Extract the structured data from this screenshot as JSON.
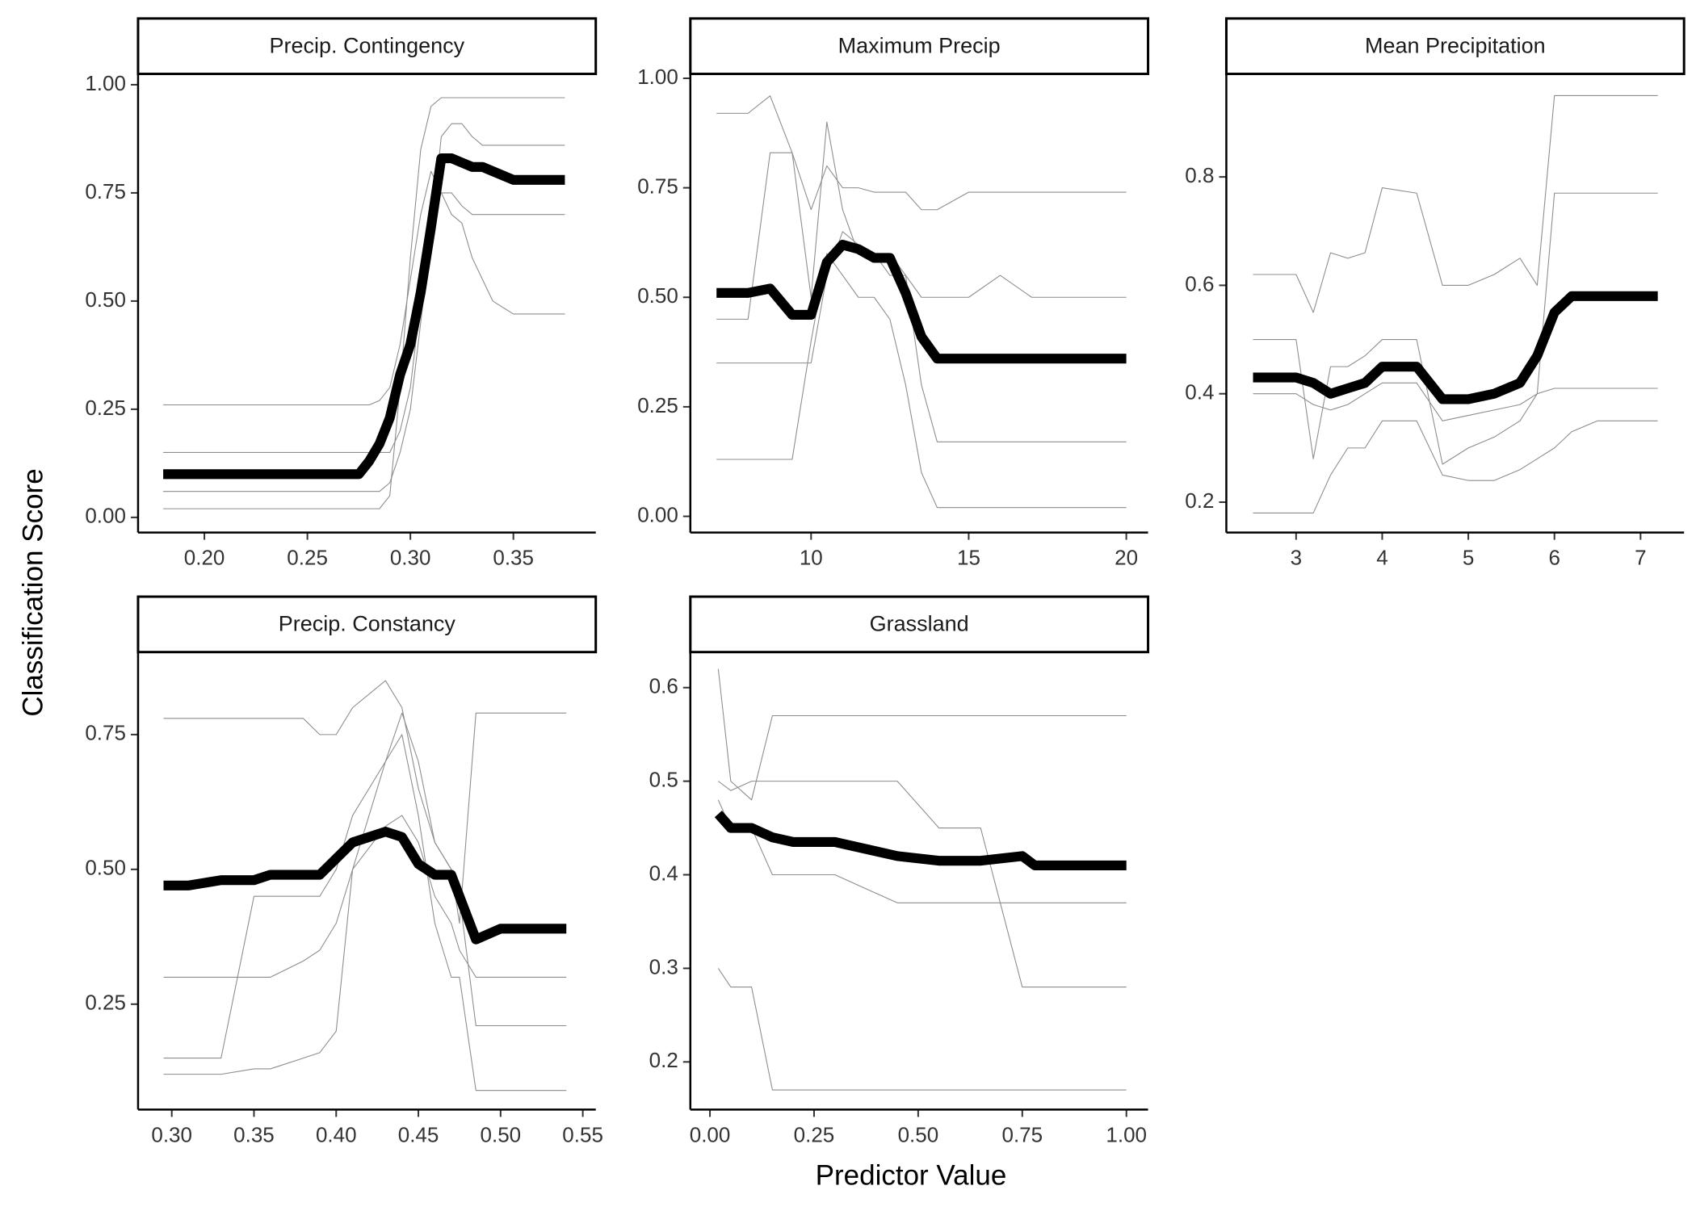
{
  "ylabel": "Classification Score",
  "xlabel": "Predictor Value",
  "chart_data": [
    {
      "type": "line",
      "title": "Precip. Contingency",
      "x": [
        0.18,
        0.2,
        0.22,
        0.24,
        0.26,
        0.275,
        0.28,
        0.285,
        0.29,
        0.295,
        0.3,
        0.305,
        0.31,
        0.315,
        0.32,
        0.325,
        0.33,
        0.335,
        0.34,
        0.35,
        0.355,
        0.375
      ],
      "xlim": [
        0.1678,
        0.39
      ],
      "xticks": [
        {
          "value": 0.2,
          "label": "0.20"
        },
        {
          "value": 0.25,
          "label": "0.25"
        },
        {
          "value": 0.3,
          "label": "0.30"
        },
        {
          "value": 0.35,
          "label": "0.35"
        }
      ],
      "ylim": [
        -0.035,
        1.025
      ],
      "yticks": [
        {
          "value": 0,
          "label": "0.00"
        },
        {
          "value": 0.25,
          "label": "0.25"
        },
        {
          "value": 0.5,
          "label": "0.50"
        },
        {
          "value": 0.75,
          "label": "0.75"
        },
        {
          "value": 1,
          "label": "1.00"
        }
      ],
      "series": [
        {
          "color": "#8c8c8c",
          "linewidth": 0.8,
          "values": [
            0.02,
            0.02,
            0.02,
            0.02,
            0.02,
            0.02,
            0.02,
            0.02,
            0.05,
            0.3,
            0.6,
            0.85,
            0.95,
            0.97,
            0.97,
            0.97,
            0.97,
            0.97,
            0.97,
            0.97,
            0.97,
            0.97
          ]
        },
        {
          "color": "#8c8c8c",
          "linewidth": 0.8,
          "values": [
            0.26,
            0.26,
            0.26,
            0.26,
            0.26,
            0.26,
            0.26,
            0.27,
            0.3,
            0.4,
            0.55,
            0.7,
            0.8,
            0.75,
            0.7,
            0.68,
            0.6,
            0.55,
            0.5,
            0.47,
            0.47,
            0.47
          ]
        },
        {
          "color": "#8c8c8c",
          "linewidth": 0.8,
          "values": [
            0.06,
            0.06,
            0.06,
            0.06,
            0.06,
            0.06,
            0.06,
            0.06,
            0.08,
            0.15,
            0.25,
            0.45,
            0.65,
            0.88,
            0.91,
            0.91,
            0.88,
            0.86,
            0.86,
            0.86,
            0.86,
            0.86
          ]
        },
        {
          "color": "#8c8c8c",
          "linewidth": 0.8,
          "values": [
            0.15,
            0.15,
            0.15,
            0.15,
            0.15,
            0.15,
            0.15,
            0.15,
            0.15,
            0.2,
            0.3,
            0.5,
            0.7,
            0.75,
            0.75,
            0.72,
            0.7,
            0.7,
            0.7,
            0.7,
            0.7,
            0.7
          ]
        },
        {
          "color": "#000000",
          "linewidth": 9,
          "values": [
            0.1,
            0.1,
            0.1,
            0.1,
            0.1,
            0.1,
            0.13,
            0.17,
            0.23,
            0.33,
            0.4,
            0.52,
            0.67,
            0.83,
            0.83,
            0.82,
            0.81,
            0.81,
            0.8,
            0.78,
            0.78,
            0.78
          ]
        }
      ]
    },
    {
      "type": "line",
      "title": "Maximum Precip",
      "x": [
        7,
        8,
        8.7,
        9.4,
        10,
        10.5,
        11,
        11.5,
        12,
        12.5,
        13,
        13.5,
        14,
        15,
        16,
        17,
        20
      ],
      "xlim": [
        6.17,
        20.69
      ],
      "xticks": [
        10,
        15,
        20
      ],
      "ylim": [
        -0.037,
        1.01
      ],
      "yticks": [
        {
          "value": 0,
          "label": "0.00"
        },
        {
          "value": 0.25,
          "label": "0.25"
        },
        {
          "value": 0.5,
          "label": "0.50"
        },
        {
          "value": 0.75,
          "label": "0.75"
        },
        {
          "value": 1,
          "label": "1.00"
        }
      ],
      "series": [
        {
          "color": "#8c8c8c",
          "linewidth": 0.8,
          "values": [
            0.92,
            0.92,
            0.96,
            0.83,
            0.7,
            0.8,
            0.75,
            0.75,
            0.74,
            0.74,
            0.74,
            0.7,
            0.7,
            0.74,
            0.74,
            0.74,
            0.74
          ]
        },
        {
          "color": "#8c8c8c",
          "linewidth": 0.8,
          "values": [
            0.13,
            0.13,
            0.13,
            0.13,
            0.4,
            0.6,
            0.55,
            0.5,
            0.5,
            0.45,
            0.3,
            0.1,
            0.02,
            0.02,
            0.02,
            0.02,
            0.02
          ]
        },
        {
          "color": "#8c8c8c",
          "linewidth": 0.8,
          "values": [
            0.35,
            0.35,
            0.35,
            0.35,
            0.35,
            0.55,
            0.65,
            0.62,
            0.6,
            0.55,
            0.55,
            0.5,
            0.5,
            0.5,
            0.55,
            0.5,
            0.5
          ]
        },
        {
          "color": "#8c8c8c",
          "linewidth": 0.8,
          "values": [
            0.45,
            0.45,
            0.83,
            0.83,
            0.5,
            0.9,
            0.7,
            0.6,
            0.6,
            0.6,
            0.55,
            0.3,
            0.17,
            0.17,
            0.17,
            0.17,
            0.17
          ]
        },
        {
          "color": "#000000",
          "linewidth": 9,
          "values": [
            0.51,
            0.51,
            0.52,
            0.46,
            0.46,
            0.58,
            0.62,
            0.61,
            0.59,
            0.59,
            0.51,
            0.41,
            0.36,
            0.36,
            0.36,
            0.36,
            0.36
          ]
        }
      ]
    },
    {
      "type": "line",
      "title": "Mean Precipitation",
      "x": [
        2.5,
        3,
        3.2,
        3.4,
        3.6,
        3.8,
        4,
        4.4,
        4.7,
        5,
        5.3,
        5.6,
        5.8,
        6,
        6.2,
        6.5,
        7.2
      ],
      "xlim": [
        2.19,
        7.505
      ],
      "xticks": [
        3,
        4,
        5,
        6,
        7
      ],
      "ylim": [
        0.144,
        0.99
      ],
      "yticks": [
        0.2,
        0.4,
        0.6,
        0.8
      ],
      "series": [
        {
          "color": "#8c8c8c",
          "linewidth": 0.8,
          "values": [
            0.62,
            0.62,
            0.55,
            0.66,
            0.65,
            0.66,
            0.78,
            0.77,
            0.6,
            0.6,
            0.62,
            0.65,
            0.6,
            0.95,
            0.95,
            0.95,
            0.95
          ]
        },
        {
          "color": "#8c8c8c",
          "linewidth": 0.8,
          "values": [
            0.18,
            0.18,
            0.18,
            0.25,
            0.3,
            0.3,
            0.35,
            0.35,
            0.25,
            0.24,
            0.24,
            0.26,
            0.28,
            0.3,
            0.33,
            0.35,
            0.35
          ]
        },
        {
          "color": "#8c8c8c",
          "linewidth": 0.8,
          "values": [
            0.5,
            0.5,
            0.28,
            0.45,
            0.45,
            0.47,
            0.5,
            0.5,
            0.27,
            0.3,
            0.32,
            0.35,
            0.4,
            0.77,
            0.77,
            0.77,
            0.77
          ]
        },
        {
          "color": "#8c8c8c",
          "linewidth": 0.8,
          "values": [
            0.4,
            0.4,
            0.38,
            0.37,
            0.38,
            0.4,
            0.42,
            0.42,
            0.35,
            0.36,
            0.37,
            0.38,
            0.4,
            0.41,
            0.41,
            0.41,
            0.41
          ]
        },
        {
          "color": "#000000",
          "linewidth": 9,
          "values": [
            0.43,
            0.43,
            0.42,
            0.4,
            0.41,
            0.42,
            0.45,
            0.45,
            0.39,
            0.39,
            0.4,
            0.42,
            0.47,
            0.55,
            0.58,
            0.58,
            0.58
          ]
        }
      ]
    },
    {
      "type": "line",
      "title": "Precip. Constancy",
      "x": [
        0.295,
        0.31,
        0.33,
        0.35,
        0.36,
        0.38,
        0.39,
        0.4,
        0.41,
        0.43,
        0.44,
        0.45,
        0.46,
        0.47,
        0.475,
        0.485,
        0.5,
        0.54
      ],
      "xlim": [
        0.2795,
        0.5579
      ],
      "xticks": [
        {
          "value": 0.3,
          "label": "0.30"
        },
        {
          "value": 0.35,
          "label": "0.35"
        },
        {
          "value": 0.4,
          "label": "0.40"
        },
        {
          "value": 0.45,
          "label": "0.45"
        },
        {
          "value": 0.5,
          "label": "0.50"
        },
        {
          "value": 0.55,
          "label": "0.55"
        }
      ],
      "ylim": [
        0.0544,
        0.903
      ],
      "yticks": [
        {
          "value": 0.25,
          "label": "0.25"
        },
        {
          "value": 0.5,
          "label": "0.50"
        },
        {
          "value": 0.75,
          "label": "0.75"
        }
      ],
      "series": [
        {
          "color": "#8c8c8c",
          "linewidth": 0.8,
          "values": [
            0.78,
            0.78,
            0.78,
            0.78,
            0.78,
            0.78,
            0.75,
            0.75,
            0.8,
            0.85,
            0.8,
            0.65,
            0.55,
            0.5,
            0.4,
            0.79,
            0.79,
            0.79
          ]
        },
        {
          "color": "#8c8c8c",
          "linewidth": 0.8,
          "values": [
            0.12,
            0.12,
            0.12,
            0.13,
            0.13,
            0.15,
            0.16,
            0.2,
            0.5,
            0.7,
            0.75,
            0.6,
            0.4,
            0.3,
            0.3,
            0.09,
            0.09,
            0.09
          ]
        },
        {
          "color": "#8c8c8c",
          "linewidth": 0.8,
          "values": [
            0.15,
            0.15,
            0.15,
            0.45,
            0.45,
            0.45,
            0.45,
            0.5,
            0.6,
            0.7,
            0.79,
            0.7,
            0.55,
            0.5,
            0.45,
            0.21,
            0.21,
            0.21
          ]
        },
        {
          "color": "#8c8c8c",
          "linewidth": 0.8,
          "values": [
            0.3,
            0.3,
            0.3,
            0.3,
            0.3,
            0.33,
            0.35,
            0.4,
            0.5,
            0.58,
            0.6,
            0.55,
            0.45,
            0.4,
            0.35,
            0.3,
            0.3,
            0.3
          ]
        },
        {
          "color": "#000000",
          "linewidth": 9,
          "values": [
            0.47,
            0.47,
            0.48,
            0.48,
            0.49,
            0.49,
            0.49,
            0.52,
            0.55,
            0.57,
            0.56,
            0.51,
            0.49,
            0.49,
            0.45,
            0.37,
            0.39,
            0.39
          ]
        }
      ]
    },
    {
      "type": "line",
      "title": "Grassland",
      "x": [
        0.02,
        0.05,
        0.1,
        0.15,
        0.2,
        0.3,
        0.4,
        0.45,
        0.55,
        0.65,
        0.75,
        0.78,
        0.9,
        1.0
      ],
      "xlim": [
        -0.047,
        1.052
      ],
      "xticks": [
        {
          "value": 0,
          "label": "0.00"
        },
        {
          "value": 0.25,
          "label": "0.25"
        },
        {
          "value": 0.5,
          "label": "0.50"
        },
        {
          "value": 0.75,
          "label": "0.75"
        },
        {
          "value": 1,
          "label": "1.00"
        }
      ],
      "ylim": [
        0.149,
        0.638
      ],
      "yticks": [
        0.2,
        0.3,
        0.4,
        0.5,
        0.6
      ],
      "series": [
        {
          "color": "#8c8c8c",
          "linewidth": 0.8,
          "values": [
            0.62,
            0.5,
            0.48,
            0.57,
            0.57,
            0.57,
            0.57,
            0.57,
            0.57,
            0.57,
            0.57,
            0.57,
            0.57,
            0.57
          ]
        },
        {
          "color": "#8c8c8c",
          "linewidth": 0.8,
          "values": [
            0.3,
            0.28,
            0.28,
            0.17,
            0.17,
            0.17,
            0.17,
            0.17,
            0.17,
            0.17,
            0.17,
            0.17,
            0.17,
            0.17
          ]
        },
        {
          "color": "#8c8c8c",
          "linewidth": 0.8,
          "values": [
            0.5,
            0.49,
            0.5,
            0.5,
            0.5,
            0.5,
            0.5,
            0.5,
            0.45,
            0.45,
            0.28,
            0.28,
            0.28,
            0.28
          ]
        },
        {
          "color": "#8c8c8c",
          "linewidth": 0.8,
          "values": [
            0.48,
            0.45,
            0.45,
            0.4,
            0.4,
            0.4,
            0.38,
            0.37,
            0.37,
            0.37,
            0.37,
            0.37,
            0.37,
            0.37
          ]
        },
        {
          "color": "#000000",
          "linewidth": 9,
          "values": [
            0.465,
            0.45,
            0.45,
            0.44,
            0.435,
            0.435,
            0.425,
            0.42,
            0.415,
            0.415,
            0.42,
            0.41,
            0.41,
            0.41
          ]
        }
      ]
    }
  ]
}
